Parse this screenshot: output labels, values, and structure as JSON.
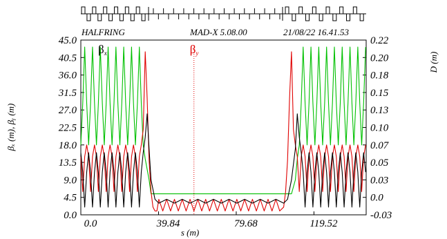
{
  "chart_data": {
    "type": "line",
    "header": {
      "title": "HALFRING",
      "program": "MAD-X 5.08.00",
      "date_time": "21/08/22 16.41.53"
    },
    "xlabel": "s (m)",
    "ylabel_left": "βₓ (m), βᵧ (m)",
    "ylabel_right": "D (m)",
    "xlim": [
      0,
      146.3
    ],
    "ylim_left": [
      0,
      45
    ],
    "ylim_right": [
      -0.03,
      0.22
    ],
    "x_ticks": [
      "0.0",
      "39.84",
      "79.68",
      "119.52"
    ],
    "x_tick_values": [
      0,
      39.84,
      79.68,
      119.52
    ],
    "y_ticks_left": [
      "0.0",
      "4.5",
      "9.0",
      "13.5",
      "18.0",
      "22.5",
      "27.0",
      "31.5",
      "36.0",
      "40.5",
      "45.0"
    ],
    "y_ticks_right": [
      "-0.03",
      "0.0",
      "0.03",
      "0.05",
      "0.07",
      "0.10",
      "0.13",
      "0.15",
      "0.18",
      "0.20",
      "0.22"
    ],
    "legend": [
      {
        "label": "β",
        "sub": "x",
        "color": "#000000",
        "x": 11
      },
      {
        "label": "β",
        "sub": "y",
        "color": "#e00000",
        "x": 58
      }
    ],
    "marker_line_x": 58,
    "series": [
      {
        "name": "βx",
        "color": "#000000",
        "x": [
          0,
          1,
          2,
          3,
          4,
          5,
          6,
          7,
          8,
          9,
          10,
          11,
          12,
          13,
          14,
          15,
          16,
          17,
          18,
          19,
          20,
          21,
          22,
          23,
          24,
          25,
          26,
          27,
          28,
          29,
          30,
          31,
          32,
          33,
          34,
          35,
          36,
          38,
          40,
          44,
          48,
          52,
          56,
          60,
          64,
          68,
          72,
          76,
          80,
          84,
          88,
          92,
          96,
          100,
          104,
          106,
          108,
          110,
          111,
          112,
          113,
          114,
          115,
          116,
          117,
          118,
          119,
          120,
          121,
          122,
          123,
          124,
          125,
          126,
          127,
          128,
          129,
          130,
          131,
          132,
          133,
          134,
          135,
          136,
          137,
          138,
          139,
          140,
          141,
          142,
          143,
          144,
          145,
          146
        ],
        "y": [
          16,
          11,
          2,
          11,
          16,
          11,
          2,
          11,
          16,
          11,
          2,
          11,
          16,
          11,
          2,
          11,
          16,
          11,
          2,
          11,
          16,
          11,
          2,
          11,
          16,
          11,
          2,
          11,
          16,
          11,
          2,
          11,
          16,
          20,
          26,
          17,
          9,
          4,
          3,
          4,
          3,
          4,
          3,
          4,
          3,
          4,
          3,
          4,
          3,
          4,
          3,
          4,
          3,
          4,
          3,
          4,
          9,
          17,
          26,
          20,
          16,
          11,
          2,
          11,
          16,
          11,
          2,
          11,
          16,
          11,
          2,
          11,
          16,
          11,
          2,
          11,
          16,
          11,
          2,
          11,
          16,
          11,
          2,
          11,
          16,
          11,
          2,
          11,
          16,
          11,
          2,
          11,
          16,
          11
        ]
      },
      {
        "name": "βy",
        "color": "#e00000",
        "x": [
          0,
          1,
          2,
          3,
          4,
          5,
          6,
          7,
          8,
          9,
          10,
          11,
          12,
          13,
          14,
          15,
          16,
          17,
          18,
          19,
          20,
          21,
          22,
          23,
          24,
          25,
          26,
          27,
          28,
          29,
          30,
          31,
          32,
          33,
          34,
          35,
          36,
          37,
          38,
          39,
          40,
          42,
          44,
          46,
          48,
          50,
          52,
          54,
          56,
          58,
          60,
          62,
          64,
          66,
          68,
          70,
          72,
          74,
          76,
          78,
          80,
          82,
          84,
          86,
          88,
          90,
          92,
          94,
          96,
          98,
          100,
          102,
          104,
          105,
          106,
          107,
          108,
          109,
          110,
          111,
          112,
          113,
          114,
          115,
          116,
          117,
          118,
          119,
          120,
          121,
          122,
          123,
          124,
          125,
          126,
          127,
          128,
          129,
          130,
          131,
          132,
          133,
          134,
          135,
          136,
          137,
          138,
          139,
          140,
          141,
          142,
          143,
          144,
          145,
          146
        ],
        "y": [
          15,
          6,
          15,
          18,
          15,
          6,
          15,
          18,
          15,
          6,
          15,
          18,
          15,
          6,
          15,
          18,
          15,
          6,
          15,
          18,
          15,
          6,
          15,
          18,
          15,
          6,
          15,
          18,
          15,
          6,
          15,
          18,
          22,
          42,
          30,
          14,
          6,
          2,
          1,
          1,
          4,
          1,
          4,
          1,
          4,
          1,
          4,
          1,
          4,
          1,
          4,
          1,
          4,
          1,
          4,
          1,
          4,
          1,
          4,
          1,
          4,
          1,
          4,
          1,
          4,
          1,
          4,
          1,
          4,
          1,
          4,
          1,
          2,
          6,
          14,
          30,
          42,
          22,
          18,
          15,
          6,
          15,
          18,
          15,
          6,
          15,
          18,
          15,
          6,
          15,
          18,
          15,
          6,
          15,
          18,
          15,
          6,
          15,
          18,
          15,
          6,
          15,
          18,
          15,
          6,
          15,
          18,
          15,
          6,
          15,
          18,
          15,
          6,
          15,
          18
        ]
      },
      {
        "name": "D",
        "color": "#00c000",
        "axis": "right",
        "x": [
          0,
          1,
          2,
          3,
          4,
          5,
          6,
          7,
          8,
          9,
          10,
          11,
          12,
          13,
          14,
          15,
          16,
          17,
          18,
          19,
          20,
          21,
          22,
          23,
          24,
          25,
          26,
          27,
          28,
          29,
          30,
          31,
          32,
          33,
          35,
          36,
          38,
          40,
          60,
          80,
          100,
          104,
          106,
          108,
          110,
          111,
          112,
          113,
          114,
          115,
          116,
          117,
          118,
          119,
          120,
          121,
          122,
          123,
          124,
          125,
          126,
          127,
          128,
          129,
          130,
          131,
          132,
          133,
          134,
          135,
          136,
          137,
          138,
          139,
          140,
          141,
          142,
          143,
          144,
          145,
          146
        ],
        "y": [
          0.07,
          0.13,
          0.21,
          0.13,
          0.07,
          0.13,
          0.21,
          0.13,
          0.07,
          0.13,
          0.21,
          0.13,
          0.07,
          0.13,
          0.21,
          0.13,
          0.07,
          0.13,
          0.21,
          0.13,
          0.07,
          0.13,
          0.21,
          0.13,
          0.07,
          0.13,
          0.21,
          0.13,
          0.07,
          0.13,
          0.21,
          0.13,
          0.07,
          0.05,
          0.02,
          0.0,
          0.0,
          0.0,
          0.0,
          0.0,
          0.0,
          0.0,
          0.0,
          0.0,
          0.02,
          0.05,
          0.07,
          0.13,
          0.21,
          0.13,
          0.07,
          0.13,
          0.21,
          0.13,
          0.07,
          0.13,
          0.21,
          0.13,
          0.07,
          0.13,
          0.21,
          0.13,
          0.07,
          0.13,
          0.21,
          0.13,
          0.07,
          0.13,
          0.21,
          0.13,
          0.07,
          0.13,
          0.21,
          0.13,
          0.07,
          0.13,
          0.21,
          0.13,
          0.07,
          0.13,
          0.21
        ]
      }
    ],
    "lattice": {
      "left_cells": 12,
      "middle_ticks": 26,
      "right_cells": 12
    }
  }
}
